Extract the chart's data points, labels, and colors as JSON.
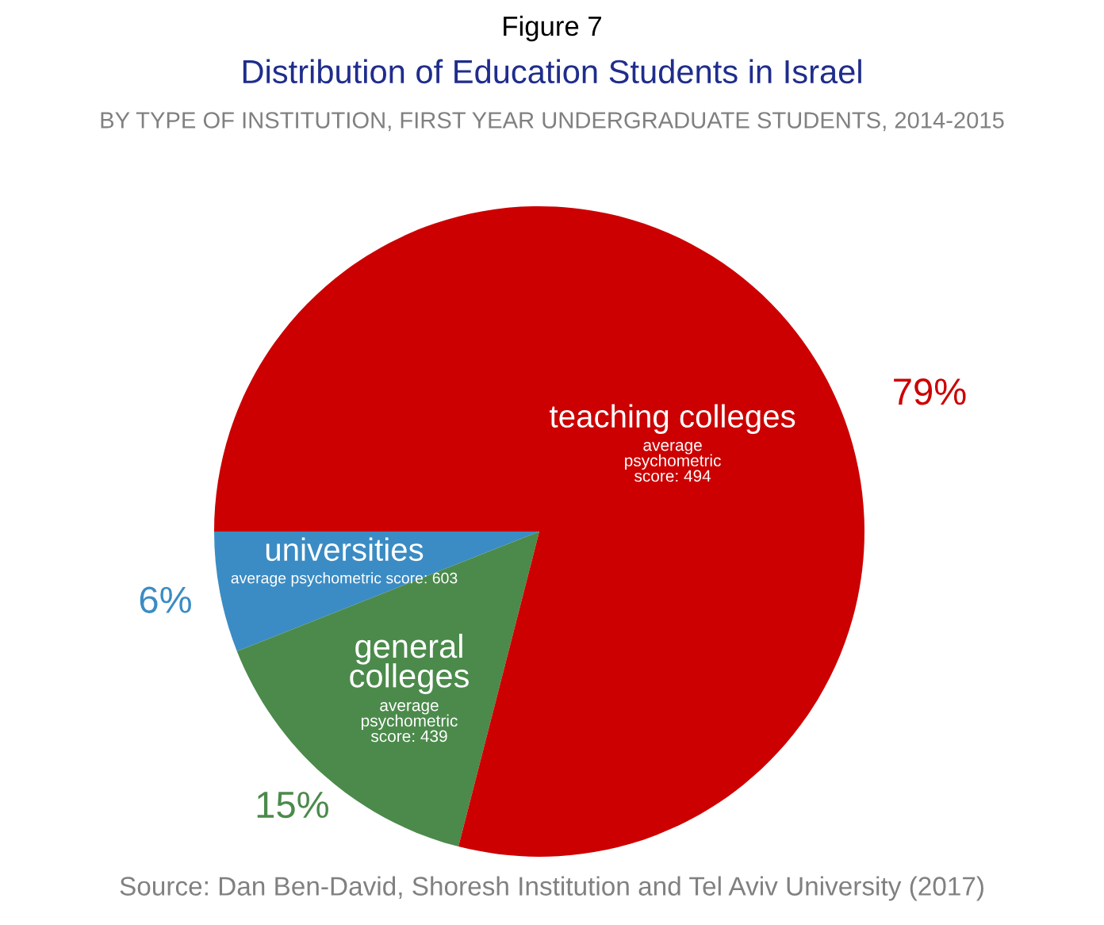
{
  "chart_data": {
    "type": "pie",
    "title": "Distribution of Education Students in Israel",
    "subtitle": "BY TYPE OF INSTITUTION, FIRST YEAR UNDERGRADUATE STUDENTS, 2014-2015",
    "categories": [
      "universities",
      "general colleges",
      "teaching colleges"
    ],
    "values": [
      6,
      15,
      79
    ],
    "colors": [
      "#3b8cc4",
      "#4b8a4b",
      "#cc0000"
    ],
    "value_labels": [
      "6%",
      "15%",
      "79%"
    ],
    "annotations": [
      "Figure 7",
      "average psychometric score: 603",
      "average\npsychometric\nscore: 439",
      "average\npsychometric\nscore: 494",
      "Source: Dan Ben-David, Shoresh Institution and Tel Aviv University (2017)"
    ]
  }
}
